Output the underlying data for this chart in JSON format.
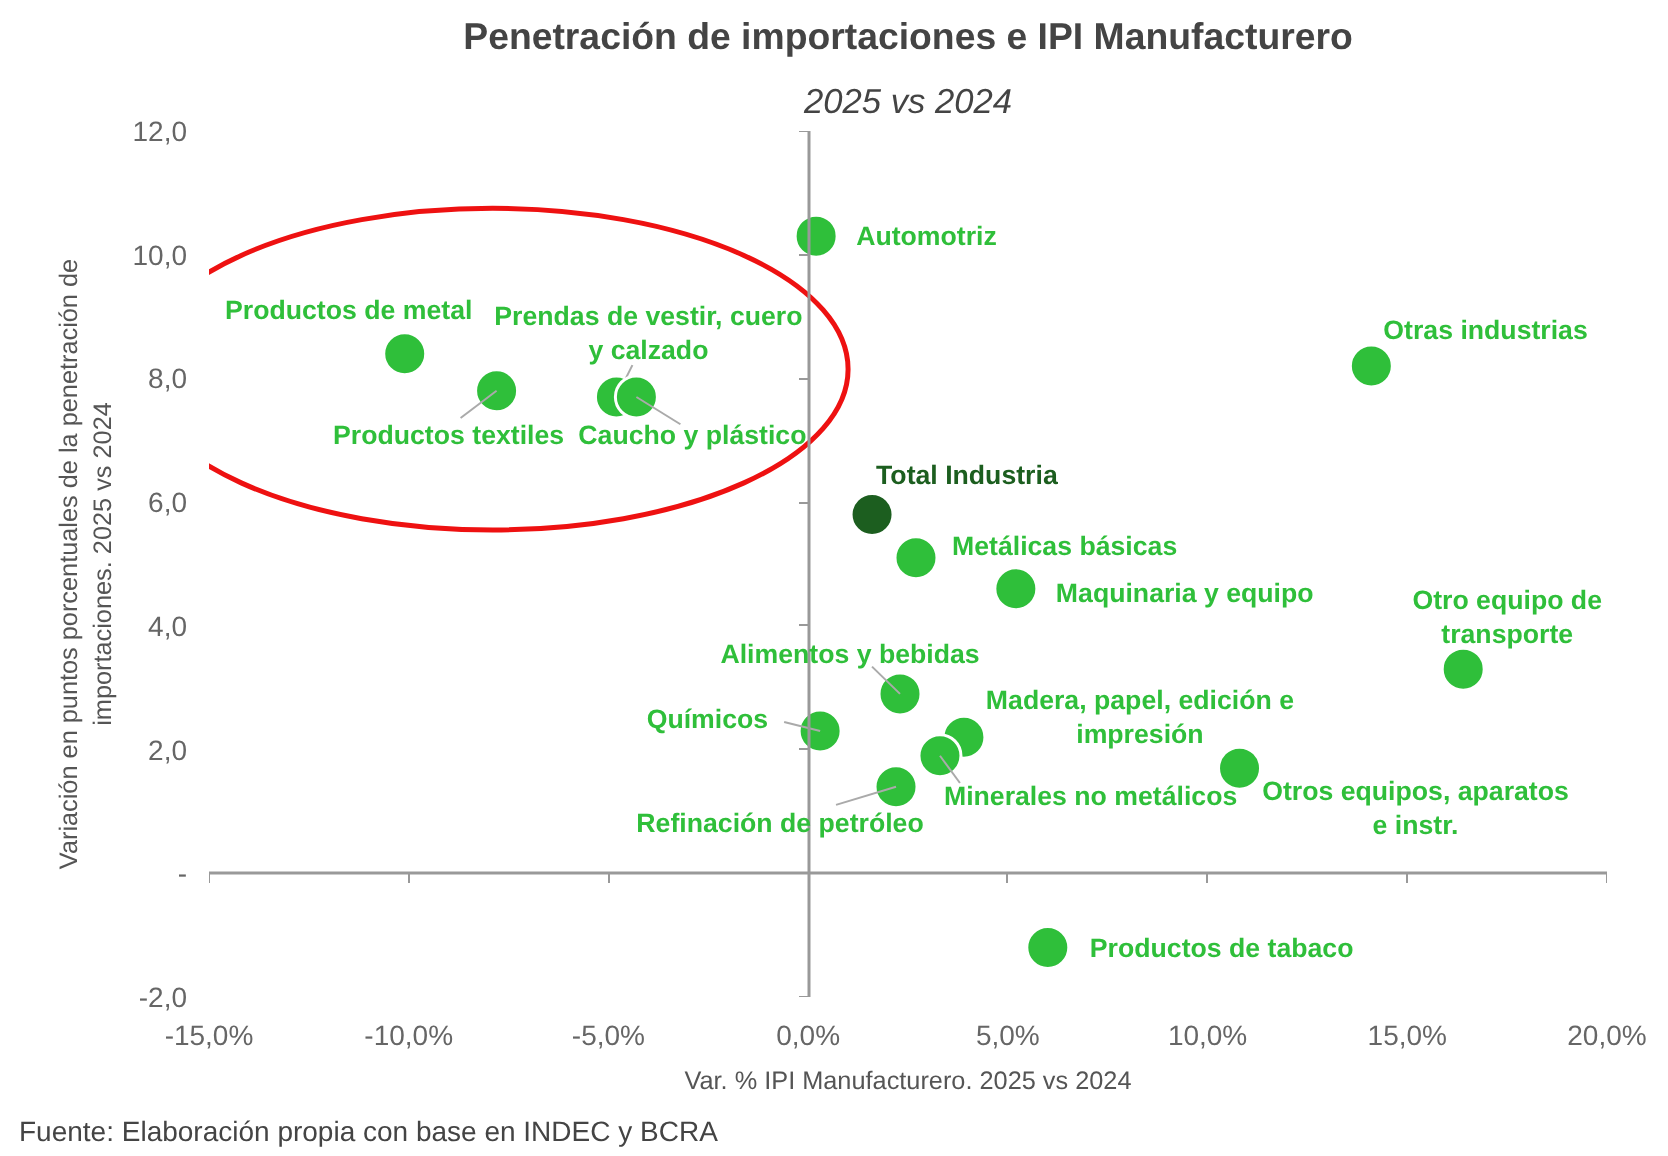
{
  "chart_data": {
    "type": "scatter",
    "title": "Penetración de importaciones e IPI Manufacturero",
    "subtitle": "2025 vs 2024",
    "xlabel": "Var. % IPI Manufacturero. 2025 vs 2024",
    "ylabel": "Variación en puntos porcentuales de la penetración de\nimportaciones. 2025 vs 2024",
    "annotations": [
      "Fuente: Elaboración propia con base en INDEC y BCRA"
    ],
    "marker": "circle",
    "xlim": [
      -15,
      20
    ],
    "xticks": [
      {
        "value": -15,
        "label": "-15,0%"
      },
      {
        "value": -10,
        "label": "-10,0%"
      },
      {
        "value": -5,
        "label": "-5,0%"
      },
      {
        "value": 0,
        "label": "0,0%"
      },
      {
        "value": 5,
        "label": "5,0%"
      },
      {
        "value": 10,
        "label": "10,0%"
      },
      {
        "value": 15,
        "label": "15,0%"
      },
      {
        "value": 20,
        "label": "20,0%"
      }
    ],
    "ylim": [
      -2,
      12
    ],
    "yticks": [
      {
        "value": -2,
        "label": "-2,0"
      },
      {
        "value": 0,
        "label": "-"
      },
      {
        "value": 2,
        "label": "2,0"
      },
      {
        "value": 4,
        "label": "4,0"
      },
      {
        "value": 6,
        "label": "6,0"
      },
      {
        "value": 8,
        "label": "8,0"
      },
      {
        "value": 10,
        "label": "10,0"
      },
      {
        "value": 12,
        "label": "12,0"
      }
    ],
    "series": [
      {
        "name": "Automotriz",
        "color": "#2fbf3a",
        "x": [
          0.2
        ],
        "values": [
          10.3
        ]
      },
      {
        "name": "Otras industrias",
        "color": "#2fbf3a",
        "x": [
          14.1
        ],
        "values": [
          8.2
        ]
      },
      {
        "name": "Productos de metal",
        "color": "#2fbf3a",
        "x": [
          -10.1
        ],
        "values": [
          8.4
        ]
      },
      {
        "name": "Productos textiles",
        "color": "#2fbf3a",
        "x": [
          -7.8
        ],
        "values": [
          7.8
        ]
      },
      {
        "name": "Prendas de vestir, cuero\ny calzado",
        "color": "#2fbf3a",
        "x": [
          -4.8
        ],
        "values": [
          7.7
        ]
      },
      {
        "name": "Caucho y plástico",
        "color": "#2fbf3a",
        "x": [
          -4.3
        ],
        "values": [
          7.7
        ]
      },
      {
        "name": "Total  Industria",
        "color": "#1c5e1f",
        "x": [
          1.6
        ],
        "values": [
          5.8
        ]
      },
      {
        "name": "Metálicas básicas",
        "color": "#2fbf3a",
        "x": [
          2.7
        ],
        "values": [
          5.1
        ]
      },
      {
        "name": "Maquinaria y equipo",
        "color": "#2fbf3a",
        "x": [
          5.2
        ],
        "values": [
          4.6
        ]
      },
      {
        "name": "Otro equipo de\ntransporte",
        "color": "#2fbf3a",
        "x": [
          16.4
        ],
        "values": [
          3.3
        ]
      },
      {
        "name": "Alimentos y bebidas",
        "color": "#2fbf3a",
        "x": [
          2.3
        ],
        "values": [
          2.9
        ]
      },
      {
        "name": "Madera, papel, edición e\nimpresión",
        "color": "#2fbf3a",
        "x": [
          3.9
        ],
        "values": [
          2.2
        ]
      },
      {
        "name": "Químicos",
        "color": "#2fbf3a",
        "x": [
          0.3
        ],
        "values": [
          2.3
        ]
      },
      {
        "name": "Minerales no metálicos",
        "color": "#2fbf3a",
        "x": [
          3.3
        ],
        "values": [
          1.9
        ]
      },
      {
        "name": "Refinación de petróleo",
        "color": "#2fbf3a",
        "x": [
          2.2
        ],
        "values": [
          1.4
        ]
      },
      {
        "name": "Otros equipos, aparatos\ne instr.",
        "color": "#2fbf3a",
        "x": [
          10.8
        ],
        "values": [
          1.7
        ]
      },
      {
        "name": "Productos de tabaco",
        "color": "#2fbf3a",
        "x": [
          6.0
        ],
        "values": [
          -1.2
        ]
      }
    ]
  }
}
